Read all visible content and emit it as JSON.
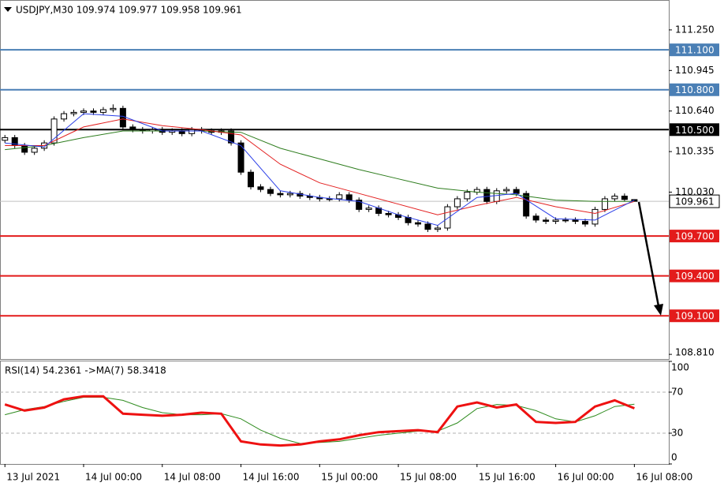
{
  "chart_data": [
    {
      "type": "candlestick",
      "title": "USDJPY,M30  109.974 109.977 109.958 109.961",
      "xlim": [
        -0.5,
        67.5
      ],
      "ylim": [
        108.775,
        111.469
      ],
      "yticks": [
        {
          "value": 111.25,
          "label": "111.250"
        },
        {
          "value": 110.945,
          "label": "110.945"
        },
        {
          "value": 110.64,
          "label": "110.640"
        },
        {
          "value": 110.335,
          "label": "110.335"
        },
        {
          "value": 110.03,
          "label": "110.030"
        },
        {
          "value": 108.81,
          "label": "108.810"
        }
      ],
      "candles": {
        "up_color": "#ffffff",
        "down_color": "#000000",
        "outline": "#000000",
        "open": [
          110.42,
          110.44,
          110.38,
          110.33,
          110.36,
          110.4,
          110.58,
          110.62,
          110.63,
          110.64,
          110.63,
          110.65,
          110.66,
          110.52,
          110.5,
          110.49,
          110.5,
          110.48,
          110.49,
          110.47,
          110.5,
          110.49,
          110.48,
          110.49,
          110.4,
          110.18,
          110.07,
          110.05,
          110.02,
          110.01,
          110.02,
          110.0,
          109.99,
          109.98,
          109.98,
          110.01,
          109.97,
          109.9,
          109.91,
          109.87,
          109.86,
          109.84,
          109.8,
          109.79,
          109.75,
          109.76,
          109.92,
          109.98,
          110.03,
          110.05,
          109.96,
          110.04,
          110.05,
          110.02,
          109.85,
          109.82,
          109.81,
          109.82,
          109.82,
          109.81,
          109.79,
          109.9,
          109.98,
          110.0,
          109.974
        ],
        "high": [
          110.46,
          110.46,
          110.4,
          110.38,
          110.42,
          110.6,
          110.64,
          110.65,
          110.66,
          110.66,
          110.67,
          110.69,
          110.68,
          110.54,
          110.52,
          110.52,
          110.52,
          110.51,
          110.51,
          110.52,
          110.52,
          110.51,
          110.51,
          110.51,
          110.42,
          110.2,
          110.09,
          110.07,
          110.04,
          110.04,
          110.04,
          110.02,
          110.01,
          110.0,
          110.03,
          110.03,
          109.99,
          109.93,
          109.93,
          109.89,
          109.88,
          109.86,
          109.82,
          109.81,
          109.78,
          109.94,
          110.0,
          110.05,
          110.07,
          110.07,
          110.06,
          110.07,
          110.07,
          110.04,
          109.87,
          109.84,
          109.84,
          109.84,
          109.84,
          109.83,
          109.92,
          110.0,
          110.02,
          110.02,
          109.977
        ],
        "low": [
          110.4,
          110.36,
          110.31,
          110.31,
          110.34,
          110.38,
          110.56,
          110.6,
          110.61,
          110.61,
          110.61,
          110.63,
          110.5,
          110.48,
          110.47,
          110.47,
          110.46,
          110.46,
          110.45,
          110.45,
          110.47,
          110.46,
          110.46,
          110.38,
          110.16,
          110.05,
          110.03,
          110.0,
          109.99,
          109.99,
          109.98,
          109.97,
          109.96,
          109.96,
          109.96,
          109.95,
          109.88,
          109.88,
          109.85,
          109.84,
          109.82,
          109.78,
          109.77,
          109.73,
          109.73,
          109.74,
          109.9,
          109.96,
          110.01,
          109.94,
          109.94,
          110.02,
          110.0,
          109.83,
          109.8,
          109.79,
          109.79,
          109.8,
          109.79,
          109.77,
          109.77,
          109.88,
          109.96,
          109.96,
          109.958
        ],
        "close": [
          110.44,
          110.38,
          110.33,
          110.36,
          110.4,
          110.58,
          110.62,
          110.63,
          110.64,
          110.63,
          110.65,
          110.66,
          110.52,
          110.5,
          110.49,
          110.5,
          110.48,
          110.49,
          110.47,
          110.5,
          110.49,
          110.48,
          110.49,
          110.4,
          110.18,
          110.07,
          110.05,
          110.02,
          110.01,
          110.02,
          110.0,
          109.99,
          109.98,
          109.98,
          110.01,
          109.97,
          109.9,
          109.91,
          109.87,
          109.86,
          109.84,
          109.8,
          109.79,
          109.75,
          109.76,
          109.92,
          109.98,
          110.03,
          110.05,
          109.96,
          110.04,
          110.05,
          110.02,
          109.85,
          109.82,
          109.81,
          109.82,
          109.82,
          109.81,
          109.79,
          109.9,
          109.98,
          110.0,
          109.975,
          109.961
        ]
      },
      "series": [
        {
          "color": "#2e7d1e",
          "x": [
            0,
            4,
            8,
            12,
            16,
            20,
            24,
            28,
            32,
            36,
            40,
            44,
            48,
            52,
            56,
            60,
            64
          ],
          "values": [
            110.35,
            110.38,
            110.44,
            110.49,
            110.49,
            110.49,
            110.48,
            110.36,
            110.28,
            110.2,
            110.13,
            110.06,
            110.03,
            110.01,
            109.97,
            109.96,
            109.96
          ]
        },
        {
          "color": "#e32020",
          "x": [
            0,
            4,
            8,
            12,
            16,
            20,
            24,
            28,
            32,
            36,
            40,
            44,
            48,
            52,
            56,
            60,
            64
          ],
          "values": [
            110.38,
            110.38,
            110.52,
            110.58,
            110.53,
            110.5,
            110.46,
            110.24,
            110.1,
            110.02,
            109.94,
            109.86,
            109.93,
            109.99,
            109.92,
            109.87,
            109.96
          ]
        },
        {
          "color": "#2a3ee8",
          "x": [
            0,
            4,
            8,
            12,
            16,
            20,
            24,
            28,
            32,
            36,
            40,
            44,
            48,
            52,
            56,
            60,
            64
          ],
          "values": [
            110.4,
            110.37,
            110.62,
            110.6,
            110.49,
            110.49,
            110.38,
            110.04,
            109.99,
            109.96,
            109.86,
            109.78,
            109.99,
            110.02,
            109.83,
            109.82,
            109.97
          ]
        }
      ],
      "levels": [
        {
          "value": 111.1,
          "label": "111.100",
          "color": "#4a7fb5"
        },
        {
          "value": 110.8,
          "label": "110.800",
          "color": "#4a7fb5"
        },
        {
          "value": 110.5,
          "label": "110.500",
          "color": "#000000"
        },
        {
          "value": 109.7,
          "label": "109.700",
          "color": "#e31b1b"
        },
        {
          "value": 109.4,
          "label": "109.400",
          "color": "#e31b1b"
        },
        {
          "value": 109.1,
          "label": "109.100",
          "color": "#e31b1b"
        }
      ],
      "last_price": {
        "value": 109.961,
        "label": "109.961",
        "color": "#c0c0c0"
      }
    },
    {
      "type": "line",
      "title": "RSI(14) 54.2361  ->MA(7) 58.3418",
      "xlim": [
        -0.5,
        67.5
      ],
      "ylim": [
        0,
        100
      ],
      "yticks": [
        100,
        70,
        30,
        0
      ],
      "levels": [
        70,
        30
      ],
      "xticks": [
        {
          "value": 0,
          "label": "13 Jul 2021"
        },
        {
          "value": 8,
          "label": "14 Jul 00:00"
        },
        {
          "value": 16,
          "label": "14 Jul 08:00"
        },
        {
          "value": 24,
          "label": "14 Jul 16:00"
        },
        {
          "value": 32,
          "label": "15 Jul 00:00"
        },
        {
          "value": 40,
          "label": "15 Jul 08:00"
        },
        {
          "value": 48,
          "label": "15 Jul 16:00"
        },
        {
          "value": 56,
          "label": "16 Jul 00:00"
        },
        {
          "value": 64,
          "label": "16 Jul 08:00"
        }
      ],
      "series": [
        {
          "color": "#2e8b1e",
          "width": 1,
          "x": [
            0,
            2,
            4,
            6,
            8,
            10,
            12,
            14,
            16,
            18,
            20,
            22,
            24,
            26,
            28,
            30,
            32,
            34,
            36,
            38,
            40,
            42,
            44,
            46,
            48,
            50,
            52,
            54,
            56,
            58,
            60,
            62,
            64
          ],
          "values": [
            48,
            53,
            56,
            61,
            65,
            65,
            62,
            55,
            50,
            48,
            48,
            49,
            44,
            33,
            25,
            20,
            21,
            22,
            25,
            28,
            30,
            32,
            32,
            40,
            54,
            58,
            57,
            52,
            44,
            41,
            47,
            56,
            58.3418
          ]
        },
        {
          "color": "#ee1111",
          "width": 3,
          "x": [
            0,
            2,
            4,
            6,
            8,
            10,
            12,
            14,
            16,
            18,
            20,
            22,
            24,
            26,
            28,
            30,
            32,
            34,
            36,
            38,
            40,
            42,
            44,
            46,
            48,
            50,
            52,
            54,
            56,
            58,
            60,
            62,
            64
          ],
          "values": [
            58,
            52,
            55,
            63,
            66,
            66,
            49,
            48,
            47,
            48,
            50,
            49,
            22,
            19,
            18,
            19,
            22,
            24,
            28,
            31,
            32,
            33,
            31,
            56,
            60,
            55,
            58,
            41,
            40,
            41,
            56,
            62,
            54.2361
          ]
        }
      ]
    }
  ]
}
